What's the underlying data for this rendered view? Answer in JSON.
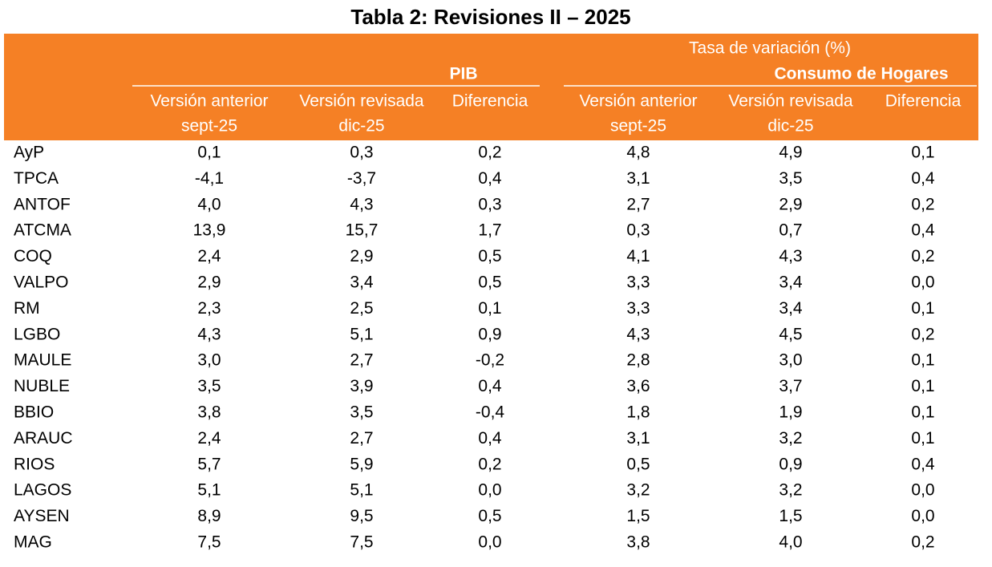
{
  "header": {
    "title": "Tabla 2: Revisiones II – 2025",
    "group_title": "Tasa de variación (%)",
    "groups": [
      "PIB",
      "Consumo de Hogares"
    ],
    "columns": [
      [
        "Versión anterior",
        "sept-25"
      ],
      [
        "Versión revisada",
        "dic-25"
      ],
      [
        "Diferencia"
      ],
      [
        "Versión anterior",
        "sept-25"
      ],
      [
        "Versión revisada",
        "dic-25"
      ],
      [
        "Diferencia"
      ]
    ]
  },
  "table": {
    "rows": [
      [
        "AyP",
        "0,1",
        "0,3",
        "0,2",
        "4,8",
        "4,9",
        "0,1"
      ],
      [
        "TPCA",
        "-4,1",
        "-3,7",
        "0,4",
        "3,1",
        "3,5",
        "0,4"
      ],
      [
        "ANTOF",
        "4,0",
        "4,3",
        "0,3",
        "2,7",
        "2,9",
        "0,2"
      ],
      [
        "ATCMA",
        "13,9",
        "15,7",
        "1,7",
        "0,3",
        "0,7",
        "0,4"
      ],
      [
        "COQ",
        "2,4",
        "2,9",
        "0,5",
        "4,1",
        "4,3",
        "0,2"
      ],
      [
        "VALPO",
        "2,9",
        "3,4",
        "0,5",
        "3,3",
        "3,4",
        "0,0"
      ],
      [
        "RM",
        "2,3",
        "2,5",
        "0,1",
        "3,3",
        "3,4",
        "0,1"
      ],
      [
        "LGBO",
        "4,3",
        "5,1",
        "0,9",
        "4,3",
        "4,5",
        "0,2"
      ],
      [
        "MAULE",
        "3,0",
        "2,7",
        "-0,2",
        "2,8",
        "3,0",
        "0,1"
      ],
      [
        "NUBLE",
        "3,5",
        "3,9",
        "0,4",
        "3,6",
        "3,7",
        "0,1"
      ],
      [
        "BBIO",
        "3,8",
        "3,5",
        "-0,4",
        "1,8",
        "1,9",
        "0,1"
      ],
      [
        "ARAUC",
        "2,4",
        "2,7",
        "0,4",
        "3,1",
        "3,2",
        "0,1"
      ],
      [
        "RIOS",
        "5,7",
        "5,9",
        "0,2",
        "0,5",
        "0,9",
        "0,4"
      ],
      [
        "LAGOS",
        "5,1",
        "5,1",
        "0,0",
        "3,2",
        "3,2",
        "0,0"
      ],
      [
        "AYSEN",
        "8,9",
        "9,5",
        "0,5",
        "1,5",
        "1,5",
        "0,0"
      ],
      [
        "MAG",
        "7,5",
        "7,5",
        "0,0",
        "3,8",
        "4,0",
        "0,2"
      ]
    ]
  }
}
